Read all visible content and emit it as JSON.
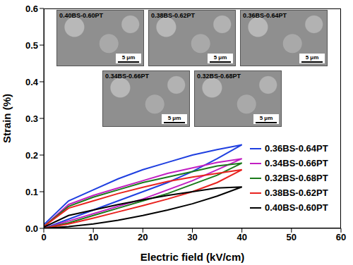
{
  "chart_data": {
    "type": "line",
    "x_label": "Electric field (kV/cm)",
    "y_label": "Strain (%)",
    "x": [
      0,
      5,
      10,
      15,
      20,
      25,
      30,
      35,
      40,
      35,
      30,
      25,
      20,
      15,
      10,
      5,
      0
    ],
    "xlim": [
      0,
      60
    ],
    "xticks": [
      0,
      10,
      20,
      30,
      40,
      50,
      60
    ],
    "ylim": [
      0,
      0.6
    ],
    "yticks": [
      {
        "value": 0,
        "label": "0.0"
      },
      0.1,
      0.2,
      0.3,
      0.4,
      0.5,
      0.6
    ],
    "grid": false,
    "series": [
      {
        "name": "0.36BS-0.64PT",
        "color": "#1f3fe0",
        "values": [
          0,
          0.025,
          0.05,
          0.075,
          0.1,
          0.125,
          0.155,
          0.19,
          0.228,
          0.215,
          0.2,
          0.18,
          0.16,
          0.135,
          0.105,
          0.075,
          0.01
        ]
      },
      {
        "name": "0.34BS-0.66PT",
        "color": "#c21fc2",
        "values": [
          0,
          0.02,
          0.04,
          0.06,
          0.08,
          0.105,
          0.13,
          0.16,
          0.19,
          0.18,
          0.165,
          0.15,
          0.13,
          0.11,
          0.09,
          0.065,
          0.005
        ]
      },
      {
        "name": "0.32BS-0.68PT",
        "color": "#1a7a1a",
        "values": [
          0,
          0.015,
          0.035,
          0.055,
          0.075,
          0.095,
          0.12,
          0.145,
          0.178,
          0.17,
          0.155,
          0.14,
          0.125,
          0.105,
          0.085,
          0.06,
          0.005
        ]
      },
      {
        "name": "0.38BS-0.62PT",
        "color": "#e8231f",
        "values": [
          0,
          0.012,
          0.028,
          0.045,
          0.062,
          0.08,
          0.1,
          0.125,
          0.16,
          0.15,
          0.14,
          0.128,
          0.112,
          0.095,
          0.075,
          0.055,
          0.005
        ]
      },
      {
        "name": "0.40BS-0.60PT",
        "color": "#000000",
        "values": [
          0,
          0.005,
          0.012,
          0.022,
          0.035,
          0.05,
          0.067,
          0.088,
          0.113,
          0.11,
          0.1,
          0.09,
          0.078,
          0.065,
          0.05,
          0.035,
          0.003
        ]
      }
    ],
    "insets": [
      {
        "label": "0.40BS-0.60PT",
        "scale_bar": "5 μm"
      },
      {
        "label": "0.38BS-0.62PT",
        "scale_bar": "5 μm"
      },
      {
        "label": "0.36BS-0.64PT",
        "scale_bar": "5 μm"
      },
      {
        "label": "0.34BS-0.66PT",
        "scale_bar": "5 μm"
      },
      {
        "label": "0.32BS-0.68PT",
        "scale_bar": "5 μm"
      }
    ]
  }
}
